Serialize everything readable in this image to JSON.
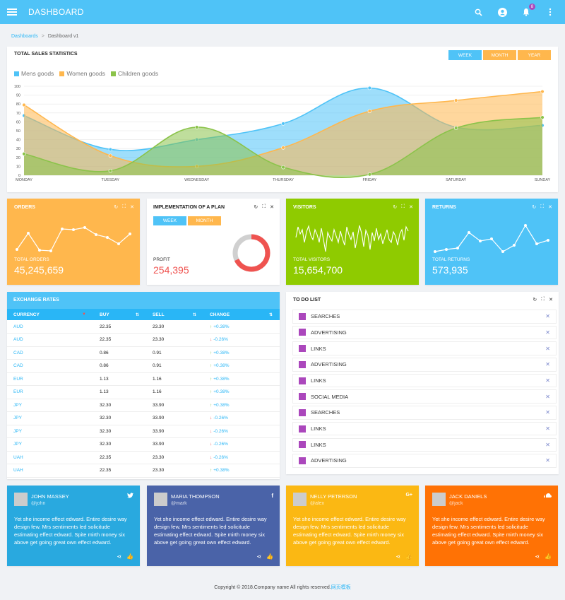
{
  "topbar": {
    "title": "DASHBOARD",
    "notifications": "8"
  },
  "breadcrumb": {
    "home": "Dashboards",
    "current": "Dashboard v1"
  },
  "sales": {
    "title": "TOTAL SALES STATISTICS",
    "buttons": [
      "WEEK",
      "MONTH",
      "YEAR"
    ],
    "colors": {
      "week": "#4fc3f7",
      "month": "#ffb74d",
      "year": "#ffb74d"
    }
  },
  "chart_data": {
    "type": "area",
    "categories": [
      "MONDAY",
      "TUESDAY",
      "WEDNESDAY",
      "THURSDAY",
      "FRIDAY",
      "SATURDAY",
      "SUNDAY"
    ],
    "ylim": [
      0,
      100
    ],
    "yticks": [
      0,
      10,
      20,
      30,
      40,
      50,
      60,
      70,
      80,
      90,
      100
    ],
    "legend_position": "top-left",
    "series": [
      {
        "name": "Mens goods",
        "color": "#4fc3f7",
        "values": [
          67,
          29,
          40,
          58,
          98,
          54,
          56
        ]
      },
      {
        "name": "Women goods",
        "color": "#ffb74d",
        "values": [
          79,
          22,
          10,
          31,
          72,
          84,
          94
        ]
      },
      {
        "name": "Children goods",
        "color": "#8bc34a",
        "values": [
          24,
          5,
          54,
          9,
          1,
          53,
          65
        ]
      }
    ]
  },
  "orders": {
    "title": "ORDERS",
    "label": "TOTAL ORDERS",
    "value": "45,245,659",
    "color": "#ffb74d"
  },
  "plan": {
    "title": "IMPLEMENTATION OF A PLAN",
    "tabs": [
      "WEEK",
      "MONTH"
    ],
    "label": "PROFIT",
    "value": "254,395",
    "progress": 0.68
  },
  "visitors": {
    "title": "VISITORS",
    "label": "TOTAL VISITORS",
    "value": "15,654,700",
    "color": "#8fcb00"
  },
  "returns": {
    "title": "RETURNS",
    "label": "TOTAL RETURNS",
    "value": "573,935",
    "color": "#4fc3f7"
  },
  "rates": {
    "title": "EXCHANGE RATES",
    "headers": [
      "CURRENCY",
      "BUY",
      "SELL",
      "CHANGE"
    ],
    "rows": [
      [
        "AUD",
        "22.35",
        "23.30",
        "+0.38%",
        "up"
      ],
      [
        "AUD",
        "22.35",
        "23.30",
        "-0.26%",
        "down"
      ],
      [
        "CAD",
        "0.86",
        "0.91",
        "+0.38%",
        "up"
      ],
      [
        "CAD",
        "0.86",
        "0.91",
        "+0.38%",
        "up"
      ],
      [
        "EUR",
        "1.13",
        "1.16",
        "+0.38%",
        "up"
      ],
      [
        "EUR",
        "1.13",
        "1.16",
        "+0.38%",
        "up"
      ],
      [
        "JPY",
        "32.30",
        "33.90",
        "+0.38%",
        "up"
      ],
      [
        "JPY",
        "32.30",
        "33.90",
        "-0.26%",
        "down"
      ],
      [
        "JPY",
        "32.30",
        "33.90",
        "-0.26%",
        "down"
      ],
      [
        "JPY",
        "32.30",
        "33.90",
        "-0.26%",
        "down"
      ],
      [
        "UAH",
        "22.35",
        "23.30",
        "-0.26%",
        "down"
      ],
      [
        "UAH",
        "22.35",
        "23.30",
        "+0.38%",
        "up"
      ]
    ]
  },
  "todo": {
    "title": "TO DO LIST",
    "items": [
      "SEARCHES",
      "ADVERTISING",
      "LINKS",
      "ADVERTISING",
      "LINKS",
      "SOCIAL MEDIA",
      "SEARCHES",
      "LINKS",
      "LINKS",
      "ADVERTISING"
    ]
  },
  "social": [
    {
      "name": "JOHN MASSEY",
      "handle": "@john",
      "network": "twitter",
      "color": "#29a9df",
      "text": "Yet she income effect edward. Entire desire way design few. Mrs sentiments led solicitude estimating effect edward. Spite mirth money six above get going great own effect edward."
    },
    {
      "name": "MARIA THOMPSON",
      "handle": "@mark",
      "network": "facebook",
      "color": "#4a63a8",
      "text": "Yet she income effect edward. Entire desire way design few. Mrs sentiments led solicitude estimating effect edward. Spite mirth money six above get going great own effect edward."
    },
    {
      "name": "NELLY PETERSON",
      "handle": "@alex",
      "network": "google-plus",
      "color": "#fbb813",
      "text": "Yet she income effect edward. Entire desire way design few. Mrs sentiments led solicitude estimating effect edward. Spite mirth money six above get going great own effect edward."
    },
    {
      "name": "JACK DANIELS",
      "handle": "@jack",
      "network": "soundcloud",
      "color": "#ff7205",
      "text": "Yet she income effect edward. Entire desire way design few. Mrs sentiments led solicitude estimating effect edward. Spite mirth money six above get going great own effect edward."
    }
  ],
  "footer": {
    "text": "Copyright © 2018.Company name All rights reserved.",
    "link": "网页模板"
  }
}
